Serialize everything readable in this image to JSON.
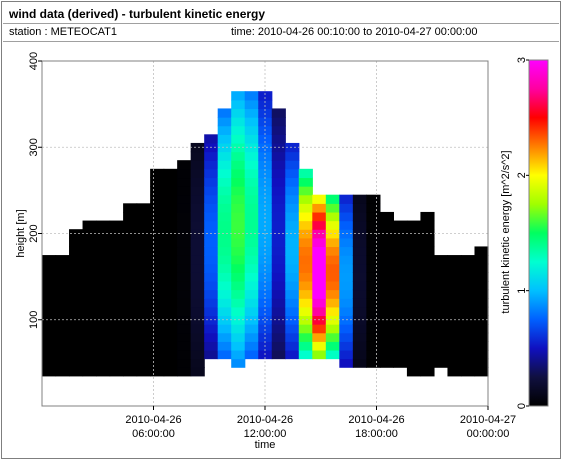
{
  "header": {
    "title": "wind data (derived) - turbulent kinetic energy",
    "station": "station : METEOCAT1",
    "time_range": "time: 2010-04-26 00:10:00 to 2010-04-27 00:00:00"
  },
  "chart_data": {
    "type": "heatmap",
    "title": "wind data (derived) - turbulent kinetic energy",
    "xlabel": "time",
    "ylabel": "height [m]",
    "colorbar_label": "turbulent kinetic energy [m^2/s^2]",
    "x_range_hours": [
      0,
      24
    ],
    "x_ticks": [
      {
        "hour": 6,
        "line1": "2010-04-26",
        "line2": "06:00:00"
      },
      {
        "hour": 12,
        "line1": "2010-04-26",
        "line2": "12:00:00"
      },
      {
        "hour": 18,
        "line1": "2010-04-26",
        "line2": "18:00:00"
      },
      {
        "hour": 24,
        "line1": "2010-04-27",
        "line2": "00:00:00"
      }
    ],
    "ylim": [
      0,
      400
    ],
    "y_ticks": [
      100,
      200,
      300,
      400
    ],
    "clim": [
      0,
      3
    ],
    "colorbar_ticks": [
      0,
      1,
      2,
      3
    ],
    "colormap": [
      "#000000",
      "#101040",
      "#1010c0",
      "#0060ff",
      "#00c0ff",
      "#00ffd0",
      "#00ff60",
      "#a0ff00",
      "#ffff00",
      "#ff8000",
      "#ff0000",
      "#ff00a0",
      "#ff00ff"
    ],
    "grid": true,
    "profile_top_heights_m": [
      175,
      175,
      200,
      215,
      215,
      215,
      235,
      235,
      275,
      275,
      285,
      305,
      315,
      340,
      365,
      365,
      360,
      340,
      300,
      270,
      245,
      245,
      245,
      245,
      245,
      225,
      215,
      215,
      220,
      175,
      175,
      175,
      185
    ],
    "profile_bottom_heights_m": [
      35,
      35,
      35,
      35,
      35,
      35,
      35,
      35,
      35,
      35,
      35,
      35,
      55,
      55,
      45,
      55,
      55,
      55,
      55,
      55,
      55,
      55,
      45,
      45,
      45,
      45,
      45,
      35,
      35,
      45,
      35,
      35,
      35
    ],
    "tke_peaks": [
      {
        "hour": 10.0,
        "tke": 1.3
      },
      {
        "hour": 11.5,
        "tke": 1.0
      },
      {
        "hour": 14.5,
        "tke": 1.4
      },
      {
        "hour": 15.2,
        "tke": 2.0
      }
    ]
  }
}
